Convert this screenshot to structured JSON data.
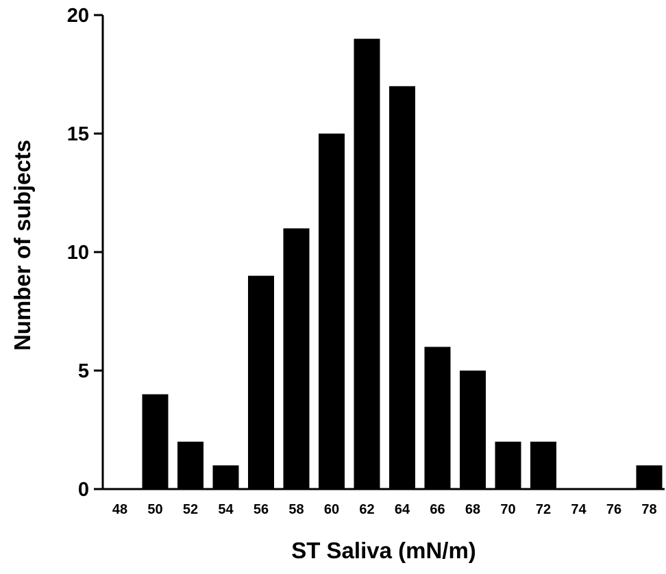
{
  "chart_data": {
    "type": "bar",
    "title": "",
    "xlabel": "ST Saliva (mN/m)",
    "ylabel": "Number of subjects",
    "categories": [
      "48",
      "50",
      "52",
      "54",
      "56",
      "58",
      "60",
      "62",
      "64",
      "66",
      "68",
      "70",
      "72",
      "74",
      "76",
      "78"
    ],
    "values": [
      0,
      4,
      2,
      1,
      9,
      11,
      15,
      19,
      17,
      6,
      5,
      2,
      2,
      0,
      0,
      1
    ],
    "ylim": [
      0,
      20
    ],
    "yticks": [
      0,
      5,
      10,
      15,
      20
    ],
    "bar_color": "#000000",
    "grid": false,
    "legend": "none"
  }
}
